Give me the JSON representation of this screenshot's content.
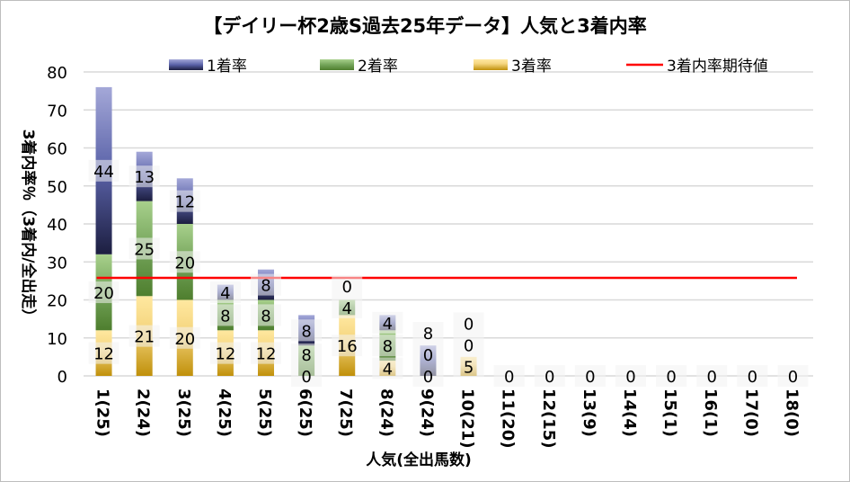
{
  "chart_data": {
    "type": "bar",
    "stacked": true,
    "title": "【デイリー杯2歳S過去25年データ】人気と3着内率",
    "xlabel": "人気(全出馬数)",
    "ylabel": "3着内率％（3着内/全出走）",
    "ylim": [
      0,
      80
    ],
    "yticks": [
      0,
      10,
      20,
      30,
      40,
      50,
      60,
      70,
      80
    ],
    "grid": true,
    "legend_position": "top",
    "categories": [
      "1(25)",
      "2(24)",
      "3(25)",
      "4(25)",
      "5(25)",
      "6(25)",
      "7(25)",
      "8(24)",
      "9(24)",
      "10(21)",
      "11(20)",
      "12(15)",
      "13(9)",
      "14(4)",
      "15(1)",
      "16(1)",
      "17(0)",
      "18(0)"
    ],
    "series": [
      {
        "name": "3着率",
        "color": "#e0b040",
        "values": [
          12,
          21,
          20,
          12,
          12,
          0,
          16,
          4,
          0,
          5,
          0,
          0,
          0,
          0,
          0,
          0,
          0,
          0
        ]
      },
      {
        "name": "2着率",
        "color": "#70a050",
        "values": [
          20,
          25,
          20,
          8,
          8,
          8,
          4,
          8,
          0,
          0,
          0,
          0,
          0,
          0,
          0,
          0,
          0,
          0
        ]
      },
      {
        "name": "1着率",
        "color": "#5058a0",
        "values": [
          44,
          13,
          12,
          4,
          8,
          8,
          0,
          4,
          8,
          0,
          0,
          0,
          0,
          0,
          0,
          0,
          0,
          0
        ]
      }
    ],
    "reference_line": {
      "name": "3着内率期待値",
      "value": 25.8,
      "color": "#ff0000"
    }
  }
}
